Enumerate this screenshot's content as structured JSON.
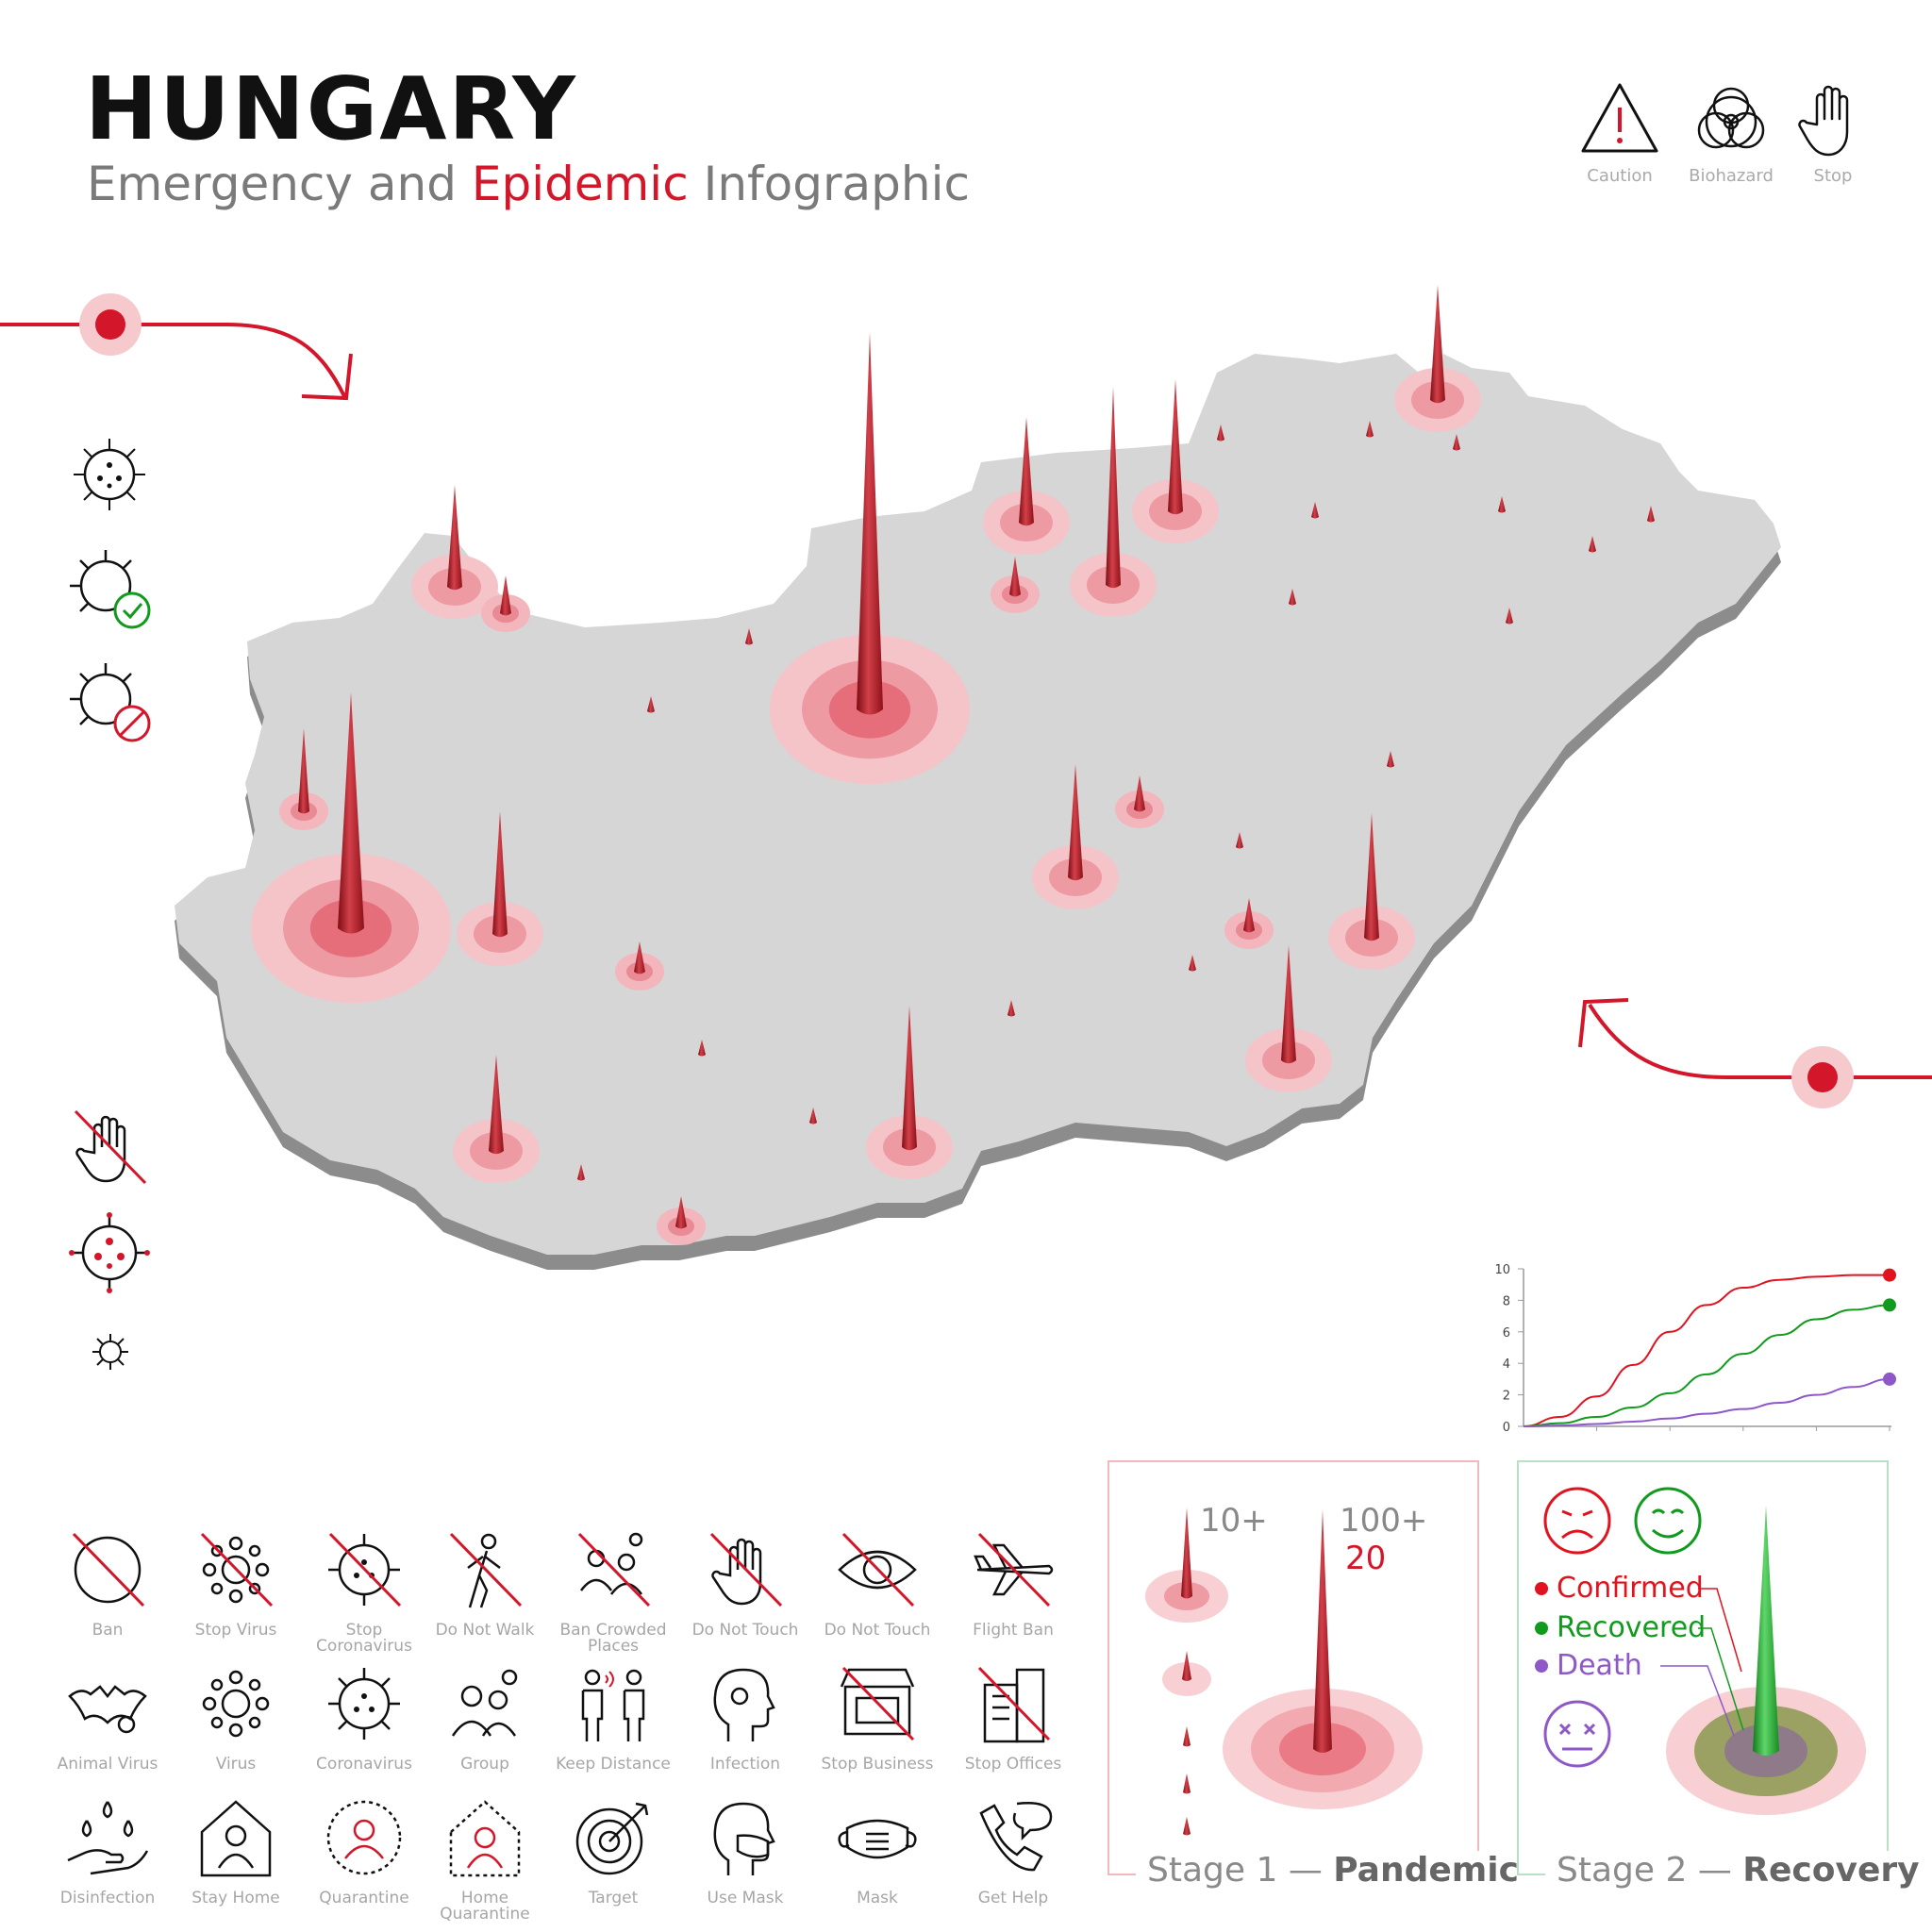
{
  "header": {
    "title": "HUNGARY",
    "subtitle_part1": "Emergency and ",
    "subtitle_highlight": "Epidemic",
    "subtitle_part2": " Infographic"
  },
  "top_icons": [
    {
      "label": "Caution",
      "icon": "caution-icon"
    },
    {
      "label": "Biohazard",
      "icon": "biohazard-icon"
    },
    {
      "label": "Stop",
      "icon": "stop-hand-icon"
    }
  ],
  "colors": {
    "accent": "#d3162a",
    "map": "#d6d6d6",
    "map_shadow": "#8c8c8c",
    "confirmed": "#e0131f",
    "recovered": "#129a1e",
    "death": "#8e58c8"
  },
  "chart_data": {
    "type": "line",
    "x": [
      0,
      1,
      2,
      3,
      4,
      5,
      6,
      7,
      8,
      9,
      10
    ],
    "yticks": [
      0,
      2,
      4,
      6,
      8,
      10
    ],
    "ylim": [
      0,
      10
    ],
    "series": [
      {
        "values": [
          0,
          0.6,
          1.9,
          3.9,
          6.0,
          7.7,
          8.8,
          9.3,
          9.5,
          9.6,
          9.6
        ]
      },
      {
        "values": [
          0,
          0.2,
          0.6,
          1.2,
          2.1,
          3.3,
          4.6,
          5.8,
          6.8,
          7.4,
          7.7
        ]
      },
      {
        "values": [
          0,
          0.05,
          0.15,
          0.3,
          0.5,
          0.8,
          1.1,
          1.5,
          2.0,
          2.5,
          3.0
        ]
      }
    ]
  },
  "stage1": {
    "label_a": "10+",
    "label_b": "100+",
    "label_c": "20",
    "stage_prefix": "Stage 1 — ",
    "stage_name": "Pandemic"
  },
  "stage2": {
    "confirmed": "Confirmed",
    "recovered": "Recovered",
    "death": "Death",
    "stage_prefix": "Stage 2 — ",
    "stage_name": "Recovery"
  },
  "icon_grid": [
    [
      {
        "label": "Ban",
        "label2": "",
        "icon": "ban-icon"
      },
      {
        "label": "Stop Virus",
        "label2": "",
        "icon": "stop-virus-icon"
      },
      {
        "label": "Stop",
        "label2": "Coronavirus",
        "icon": "stop-coronavirus-icon"
      },
      {
        "label": "Do Not Walk",
        "label2": "",
        "icon": "do-not-walk-icon"
      },
      {
        "label": "Ban Crowded",
        "label2": "Places",
        "icon": "ban-crowded-places-icon"
      },
      {
        "label": "Do Not Touch",
        "label2": "",
        "icon": "do-not-touch-hand-icon"
      },
      {
        "label": "Do Not Touch",
        "label2": "",
        "icon": "do-not-touch-eye-icon"
      },
      {
        "label": "Flight Ban",
        "label2": "",
        "icon": "flight-ban-icon"
      }
    ],
    [
      {
        "label": "Animal Virus",
        "label2": "",
        "icon": "animal-virus-icon"
      },
      {
        "label": "Virus",
        "label2": "",
        "icon": "virus-icon"
      },
      {
        "label": "Coronavirus",
        "label2": "",
        "icon": "coronavirus-icon"
      },
      {
        "label": "Group",
        "label2": "",
        "icon": "group-icon"
      },
      {
        "label": "Keep Distance",
        "label2": "",
        "icon": "keep-distance-icon"
      },
      {
        "label": "Infection",
        "label2": "",
        "icon": "infection-icon"
      },
      {
        "label": "Stop Business",
        "label2": "",
        "icon": "stop-business-icon"
      },
      {
        "label": "Stop Offices",
        "label2": "",
        "icon": "stop-offices-icon"
      }
    ],
    [
      {
        "label": "Disinfection",
        "label2": "",
        "icon": "disinfection-icon"
      },
      {
        "label": "Stay Home",
        "label2": "",
        "icon": "stay-home-icon"
      },
      {
        "label": "Quarantine",
        "label2": "",
        "icon": "quarantine-icon"
      },
      {
        "label": "Home",
        "label2": "Quarantine",
        "icon": "home-quarantine-icon"
      },
      {
        "label": "Target",
        "label2": "",
        "icon": "target-icon"
      },
      {
        "label": "Use Mask",
        "label2": "",
        "icon": "use-mask-icon"
      },
      {
        "label": "Mask",
        "label2": "",
        "icon": "mask-icon"
      },
      {
        "label": "Get Help",
        "label2": "",
        "icon": "get-help-icon"
      }
    ]
  ]
}
